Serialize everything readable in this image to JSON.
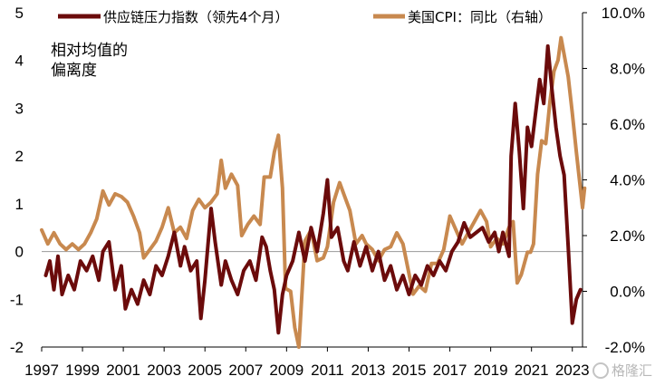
{
  "chart_data": {
    "type": "line",
    "title": "",
    "ylabel_left": [
      "相对均值的",
      "偏离度"
    ],
    "left_axis": {
      "min": -2,
      "max": 5,
      "ticks": [
        "-2",
        "-1",
        "0",
        "1",
        "2",
        "3",
        "4",
        "5"
      ]
    },
    "right_axis": {
      "min": -2.0,
      "max": 10.0,
      "ticks": [
        "-2.0%",
        "0.0%",
        "2.0%",
        "4.0%",
        "6.0%",
        "8.0%",
        "10.0%"
      ]
    },
    "x_ticks": [
      "1997",
      "1999",
      "2001",
      "2003",
      "2005",
      "2007",
      "2009",
      "2011",
      "2013",
      "2015",
      "2017",
      "2019",
      "2021",
      "2023"
    ],
    "x_range": [
      1997,
      2023.5
    ],
    "grid": false,
    "legend_position": "top",
    "series": [
      {
        "name": "供应链压力指数（领先4个月）",
        "axis": "left",
        "color": "#6b0b0b",
        "points": [
          [
            1997.2,
            -0.5
          ],
          [
            1997.4,
            -0.2
          ],
          [
            1997.6,
            -0.8
          ],
          [
            1997.8,
            -0.1
          ],
          [
            1998.0,
            -0.9
          ],
          [
            1998.3,
            -0.5
          ],
          [
            1998.6,
            -0.8
          ],
          [
            1998.9,
            -0.2
          ],
          [
            1999.2,
            -0.4
          ],
          [
            1999.5,
            -0.1
          ],
          [
            1999.8,
            -0.6
          ],
          [
            2000.0,
            0.0
          ],
          [
            2000.3,
            0.2
          ],
          [
            2000.6,
            -0.8
          ],
          [
            2000.9,
            -0.3
          ],
          [
            2001.1,
            -1.2
          ],
          [
            2001.4,
            -0.8
          ],
          [
            2001.7,
            -1.1
          ],
          [
            2002.0,
            -0.6
          ],
          [
            2002.3,
            -0.9
          ],
          [
            2002.6,
            -0.3
          ],
          [
            2002.9,
            -0.5
          ],
          [
            2003.2,
            -0.1
          ],
          [
            2003.5,
            0.4
          ],
          [
            2003.8,
            -0.3
          ],
          [
            2004.0,
            0.1
          ],
          [
            2004.3,
            -0.4
          ],
          [
            2004.6,
            -0.2
          ],
          [
            2004.8,
            -1.4
          ],
          [
            2005.0,
            -0.6
          ],
          [
            2005.3,
            0.9
          ],
          [
            2005.5,
            0.2
          ],
          [
            2005.8,
            -0.7
          ],
          [
            2006.0,
            -0.2
          ],
          [
            2006.3,
            -0.6
          ],
          [
            2006.6,
            -0.9
          ],
          [
            2006.9,
            -0.4
          ],
          [
            2007.2,
            -0.2
          ],
          [
            2007.5,
            -0.6
          ],
          [
            2007.8,
            0.3
          ],
          [
            2008.0,
            0.1
          ],
          [
            2008.2,
            -0.4
          ],
          [
            2008.4,
            -0.8
          ],
          [
            2008.6,
            -1.7
          ],
          [
            2008.8,
            -0.9
          ],
          [
            2009.0,
            -0.5
          ],
          [
            2009.3,
            -0.2
          ],
          [
            2009.6,
            0.4
          ],
          [
            2009.9,
            -0.2
          ],
          [
            2010.2,
            0.5
          ],
          [
            2010.5,
            0.0
          ],
          [
            2010.8,
            0.8
          ],
          [
            2011.0,
            1.5
          ],
          [
            2011.2,
            0.3
          ],
          [
            2011.5,
            0.5
          ],
          [
            2011.8,
            -0.2
          ],
          [
            2012.0,
            -0.4
          ],
          [
            2012.3,
            0.2
          ],
          [
            2012.6,
            -0.3
          ],
          [
            2012.9,
            0.1
          ],
          [
            2013.2,
            -0.4
          ],
          [
            2013.5,
            0.0
          ],
          [
            2013.8,
            -0.6
          ],
          [
            2014.1,
            -0.3
          ],
          [
            2014.4,
            -0.8
          ],
          [
            2014.7,
            -0.5
          ],
          [
            2015.0,
            -0.9
          ],
          [
            2015.3,
            -0.5
          ],
          [
            2015.6,
            -0.7
          ],
          [
            2015.9,
            -0.3
          ],
          [
            2016.2,
            -0.5
          ],
          [
            2016.5,
            -0.2
          ],
          [
            2016.8,
            -0.4
          ],
          [
            2017.1,
            0.0
          ],
          [
            2017.4,
            0.2
          ],
          [
            2017.7,
            0.6
          ],
          [
            2018.0,
            0.3
          ],
          [
            2018.3,
            0.4
          ],
          [
            2018.6,
            0.5
          ],
          [
            2018.9,
            0.2
          ],
          [
            2019.2,
            0.4
          ],
          [
            2019.4,
            0.0
          ],
          [
            2019.6,
            0.4
          ],
          [
            2019.9,
            -0.1
          ],
          [
            2020.0,
            2.0
          ],
          [
            2020.2,
            3.1
          ],
          [
            2020.4,
            2.1
          ],
          [
            2020.6,
            0.9
          ],
          [
            2020.8,
            2.6
          ],
          [
            2021.0,
            2.2
          ],
          [
            2021.2,
            2.9
          ],
          [
            2021.4,
            3.6
          ],
          [
            2021.6,
            3.1
          ],
          [
            2021.8,
            4.3
          ],
          [
            2022.0,
            3.4
          ],
          [
            2022.2,
            2.6
          ],
          [
            2022.4,
            2.0
          ],
          [
            2022.6,
            1.6
          ],
          [
            2022.8,
            0.1
          ],
          [
            2023.0,
            -1.5
          ],
          [
            2023.2,
            -1.0
          ],
          [
            2023.4,
            -0.8
          ]
        ]
      },
      {
        "name": "美国CPI：同比（右轴）",
        "axis": "right",
        "color": "#c8894f",
        "points": [
          [
            1997.0,
            2.2
          ],
          [
            1997.3,
            1.7
          ],
          [
            1997.6,
            2.1
          ],
          [
            1997.9,
            1.7
          ],
          [
            1998.2,
            1.5
          ],
          [
            1998.5,
            1.7
          ],
          [
            1998.8,
            1.5
          ],
          [
            1999.1,
            1.7
          ],
          [
            1999.4,
            2.1
          ],
          [
            1999.7,
            2.6
          ],
          [
            2000.0,
            3.6
          ],
          [
            2000.3,
            3.1
          ],
          [
            2000.6,
            3.5
          ],
          [
            2000.9,
            3.4
          ],
          [
            2001.2,
            3.2
          ],
          [
            2001.5,
            2.7
          ],
          [
            2001.8,
            2.1
          ],
          [
            2002.0,
            1.2
          ],
          [
            2002.3,
            1.5
          ],
          [
            2002.6,
            1.8
          ],
          [
            2002.9,
            2.3
          ],
          [
            2003.2,
            3.0
          ],
          [
            2003.5,
            2.1
          ],
          [
            2003.8,
            2.3
          ],
          [
            2004.1,
            1.9
          ],
          [
            2004.4,
            2.9
          ],
          [
            2004.7,
            3.3
          ],
          [
            2005.0,
            3.0
          ],
          [
            2005.3,
            3.2
          ],
          [
            2005.6,
            3.5
          ],
          [
            2005.8,
            4.7
          ],
          [
            2006.0,
            3.7
          ],
          [
            2006.3,
            4.2
          ],
          [
            2006.6,
            3.8
          ],
          [
            2006.8,
            2.0
          ],
          [
            2007.1,
            2.4
          ],
          [
            2007.4,
            2.7
          ],
          [
            2007.7,
            2.4
          ],
          [
            2007.9,
            4.1
          ],
          [
            2008.2,
            4.1
          ],
          [
            2008.4,
            5.0
          ],
          [
            2008.6,
            5.6
          ],
          [
            2008.8,
            3.7
          ],
          [
            2008.95,
            0.1
          ],
          [
            2009.2,
            0.0
          ],
          [
            2009.4,
            -1.3
          ],
          [
            2009.6,
            -2.0
          ],
          [
            2009.9,
            1.8
          ],
          [
            2010.2,
            2.2
          ],
          [
            2010.5,
            1.1
          ],
          [
            2010.8,
            1.2
          ],
          [
            2011.0,
            1.6
          ],
          [
            2011.3,
            3.2
          ],
          [
            2011.6,
            3.9
          ],
          [
            2011.8,
            3.5
          ],
          [
            2012.1,
            2.9
          ],
          [
            2012.4,
            1.7
          ],
          [
            2012.7,
            2.0
          ],
          [
            2012.9,
            1.7
          ],
          [
            2013.2,
            1.5
          ],
          [
            2013.5,
            1.1
          ],
          [
            2013.8,
            1.5
          ],
          [
            2014.1,
            1.6
          ],
          [
            2014.4,
            2.1
          ],
          [
            2014.7,
            1.7
          ],
          [
            2014.95,
            0.8
          ],
          [
            2015.2,
            -0.1
          ],
          [
            2015.5,
            0.2
          ],
          [
            2015.8,
            0.0
          ],
          [
            2016.1,
            1.0
          ],
          [
            2016.4,
            1.0
          ],
          [
            2016.7,
            1.5
          ],
          [
            2017.0,
            2.7
          ],
          [
            2017.3,
            2.2
          ],
          [
            2017.6,
            1.7
          ],
          [
            2017.9,
            2.1
          ],
          [
            2018.2,
            2.5
          ],
          [
            2018.5,
            2.9
          ],
          [
            2018.8,
            2.5
          ],
          [
            2019.0,
            1.6
          ],
          [
            2019.3,
            1.9
          ],
          [
            2019.6,
            1.7
          ],
          [
            2019.9,
            2.3
          ],
          [
            2020.1,
            2.5
          ],
          [
            2020.3,
            0.3
          ],
          [
            2020.5,
            0.6
          ],
          [
            2020.8,
            1.4
          ],
          [
            2020.95,
            1.4
          ],
          [
            2021.1,
            1.7
          ],
          [
            2021.3,
            4.2
          ],
          [
            2021.5,
            5.4
          ],
          [
            2021.7,
            5.3
          ],
          [
            2021.9,
            6.8
          ],
          [
            2022.1,
            7.9
          ],
          [
            2022.3,
            8.3
          ],
          [
            2022.45,
            9.1
          ],
          [
            2022.6,
            8.5
          ],
          [
            2022.8,
            7.7
          ],
          [
            2023.0,
            6.4
          ],
          [
            2023.2,
            5.0
          ],
          [
            2023.35,
            4.0
          ],
          [
            2023.5,
            3.0
          ],
          [
            2023.6,
            3.7
          ]
        ]
      }
    ]
  },
  "watermark": "格隆汇"
}
